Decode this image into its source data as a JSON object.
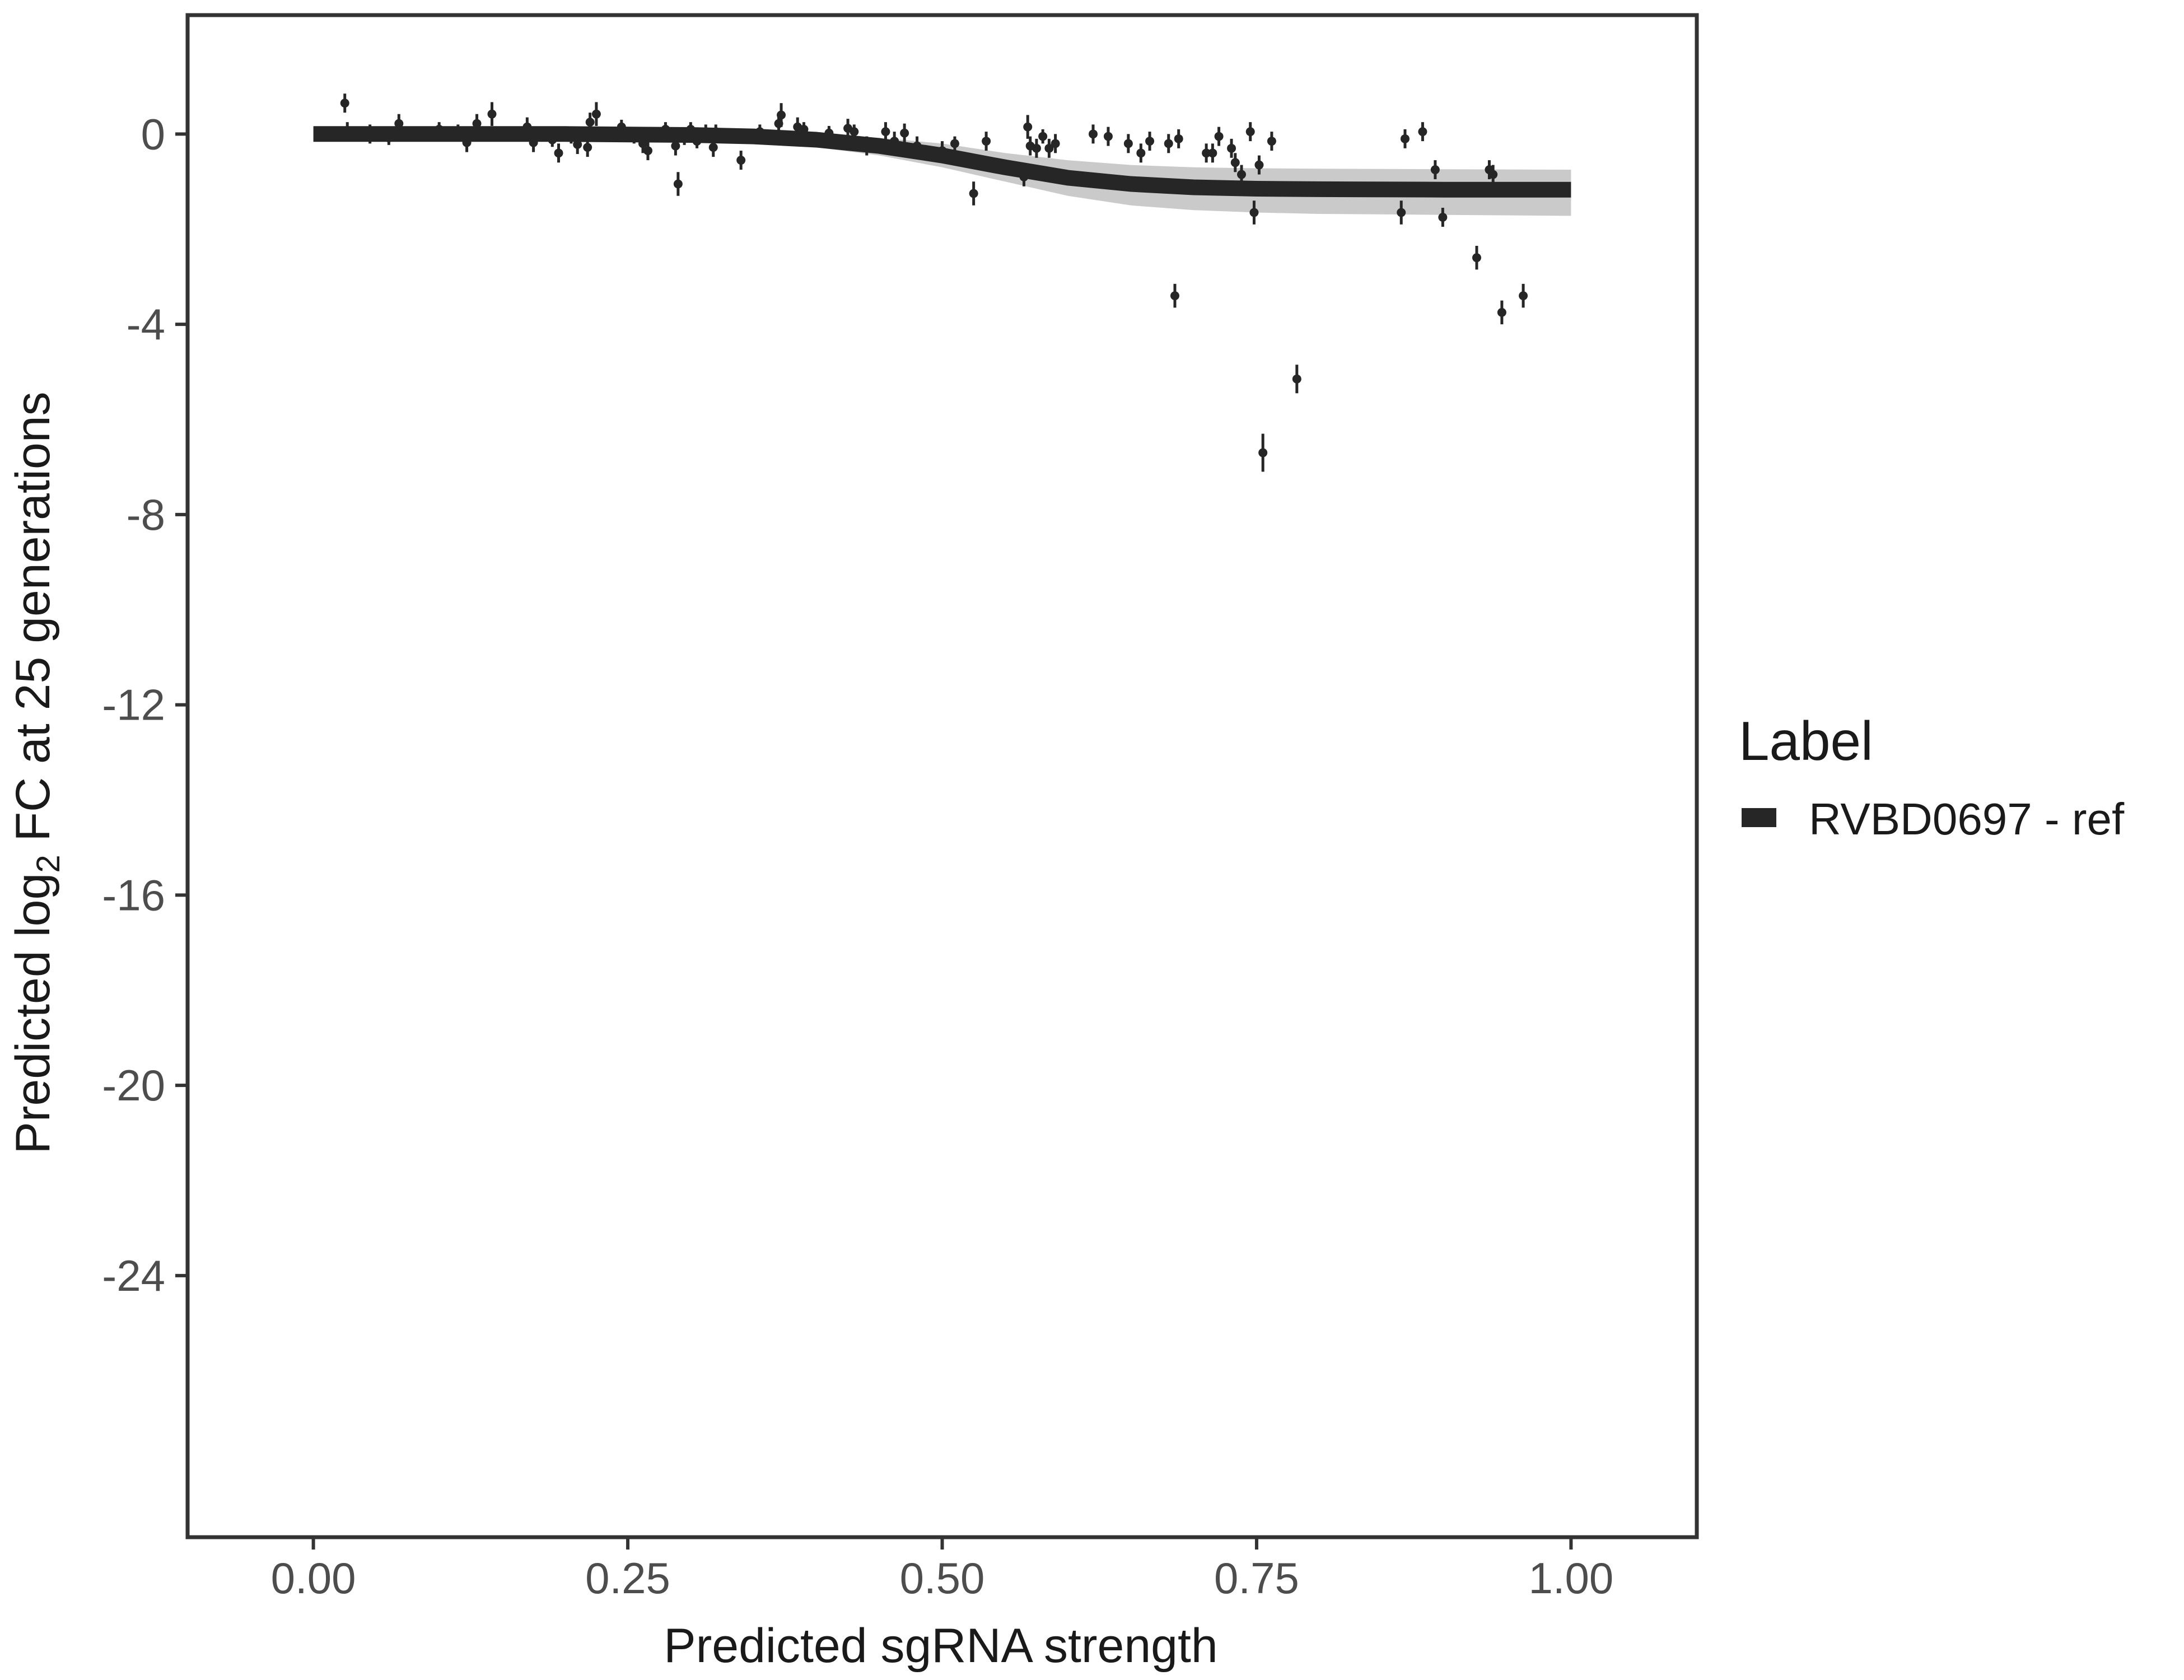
{
  "chart_data": {
    "type": "scatter",
    "xlabel": "Predicted sgRNA strength",
    "ylabel": {
      "prefix": "Predicted  log",
      "subscript": "2",
      "suffix": " FC at 25 generations"
    },
    "xlim": [
      -0.1,
      1.1
    ],
    "ylim": [
      -29.5,
      2.5
    ],
    "x_ticks": [
      {
        "value": 0.0,
        "label": "0.00"
      },
      {
        "value": 0.25,
        "label": "0.25"
      },
      {
        "value": 0.5,
        "label": "0.50"
      },
      {
        "value": 0.75,
        "label": "0.75"
      },
      {
        "value": 1.0,
        "label": "1.00"
      }
    ],
    "y_ticks": [
      {
        "value": 0,
        "label": "0"
      },
      {
        "value": -4,
        "label": "-4"
      },
      {
        "value": -8,
        "label": "-8"
      },
      {
        "value": -12,
        "label": "-12"
      },
      {
        "value": -16,
        "label": "-16"
      },
      {
        "value": -20,
        "label": "-20"
      },
      {
        "value": -24,
        "label": "-24"
      }
    ],
    "grid": false,
    "legend": {
      "title": "Label",
      "position": "right",
      "entries": [
        {
          "name": "RVBD0697 - ref",
          "color": "#262626"
        }
      ]
    },
    "series": [
      {
        "name": "RVBD0697 - ref",
        "color": "#262626",
        "fit_curve": {
          "x": [
            0.0,
            0.1,
            0.2,
            0.3,
            0.35,
            0.4,
            0.45,
            0.5,
            0.55,
            0.6,
            0.65,
            0.7,
            0.75,
            0.8,
            0.9,
            1.0
          ],
          "y": [
            0.0,
            0.0,
            0.0,
            -0.02,
            -0.05,
            -0.12,
            -0.25,
            -0.45,
            -0.7,
            -0.92,
            -1.05,
            -1.12,
            -1.15,
            -1.16,
            -1.17,
            -1.17
          ],
          "band_lower": [
            -0.08,
            -0.08,
            -0.1,
            -0.12,
            -0.18,
            -0.28,
            -0.45,
            -0.7,
            -1.0,
            -1.3,
            -1.5,
            -1.6,
            -1.65,
            -1.68,
            -1.7,
            -1.72
          ],
          "band_upper": [
            0.06,
            0.06,
            0.05,
            0.05,
            0.04,
            0.0,
            -0.08,
            -0.2,
            -0.4,
            -0.55,
            -0.65,
            -0.7,
            -0.72,
            -0.73,
            -0.74,
            -0.75
          ]
        },
        "points": [
          {
            "x": 0.025,
            "y": 0.65,
            "err": 0.2
          },
          {
            "x": 0.027,
            "y": 0.05,
            "err": 0.2
          },
          {
            "x": 0.045,
            "y": 0.0,
            "err": 0.2
          },
          {
            "x": 0.06,
            "y": -0.08,
            "err": 0.15
          },
          {
            "x": 0.068,
            "y": 0.22,
            "err": 0.2
          },
          {
            "x": 0.1,
            "y": 0.1,
            "err": 0.15
          },
          {
            "x": 0.115,
            "y": 0.05,
            "err": 0.15
          },
          {
            "x": 0.122,
            "y": -0.18,
            "err": 0.2
          },
          {
            "x": 0.13,
            "y": 0.22,
            "err": 0.2
          },
          {
            "x": 0.142,
            "y": 0.42,
            "err": 0.25
          },
          {
            "x": 0.17,
            "y": 0.15,
            "err": 0.2
          },
          {
            "x": 0.175,
            "y": -0.18,
            "err": 0.2
          },
          {
            "x": 0.19,
            "y": -0.12,
            "err": 0.15
          },
          {
            "x": 0.195,
            "y": -0.4,
            "err": 0.2
          },
          {
            "x": 0.205,
            "y": -0.05,
            "err": 0.15
          },
          {
            "x": 0.21,
            "y": -0.22,
            "err": 0.2
          },
          {
            "x": 0.218,
            "y": -0.28,
            "err": 0.2
          },
          {
            "x": 0.22,
            "y": 0.25,
            "err": 0.2
          },
          {
            "x": 0.225,
            "y": 0.42,
            "err": 0.25
          },
          {
            "x": 0.245,
            "y": 0.15,
            "err": 0.15
          },
          {
            "x": 0.255,
            "y": -0.05,
            "err": 0.15
          },
          {
            "x": 0.26,
            "y": 0.0,
            "err": 0.15
          },
          {
            "x": 0.262,
            "y": -0.2,
            "err": 0.2
          },
          {
            "x": 0.266,
            "y": -0.35,
            "err": 0.2
          },
          {
            "x": 0.28,
            "y": 0.1,
            "err": 0.15
          },
          {
            "x": 0.288,
            "y": -0.25,
            "err": 0.2
          },
          {
            "x": 0.29,
            "y": -1.05,
            "err": 0.25
          },
          {
            "x": 0.295,
            "y": -0.08,
            "err": 0.15
          },
          {
            "x": 0.3,
            "y": 0.1,
            "err": 0.15
          },
          {
            "x": 0.305,
            "y": -0.15,
            "err": 0.15
          },
          {
            "x": 0.312,
            "y": 0.05,
            "err": 0.15
          },
          {
            "x": 0.318,
            "y": -0.28,
            "err": 0.2
          },
          {
            "x": 0.32,
            "y": 0.05,
            "err": 0.15
          },
          {
            "x": 0.34,
            "y": -0.55,
            "err": 0.2
          },
          {
            "x": 0.355,
            "y": 0.05,
            "err": 0.15
          },
          {
            "x": 0.37,
            "y": 0.22,
            "err": 0.2
          },
          {
            "x": 0.372,
            "y": 0.4,
            "err": 0.25
          },
          {
            "x": 0.385,
            "y": 0.15,
            "err": 0.2
          },
          {
            "x": 0.39,
            "y": 0.1,
            "err": 0.15
          },
          {
            "x": 0.41,
            "y": 0.02,
            "err": 0.15
          },
          {
            "x": 0.425,
            "y": 0.12,
            "err": 0.2
          },
          {
            "x": 0.43,
            "y": 0.05,
            "err": 0.15
          },
          {
            "x": 0.44,
            "y": -0.25,
            "err": 0.2
          },
          {
            "x": 0.455,
            "y": 0.05,
            "err": 0.2
          },
          {
            "x": 0.462,
            "y": -0.15,
            "err": 0.2
          },
          {
            "x": 0.47,
            "y": 0.02,
            "err": 0.2
          },
          {
            "x": 0.48,
            "y": -0.25,
            "err": 0.2
          },
          {
            "x": 0.5,
            "y": -0.35,
            "err": 0.2
          },
          {
            "x": 0.51,
            "y": -0.2,
            "err": 0.15
          },
          {
            "x": 0.525,
            "y": -1.25,
            "err": 0.25
          },
          {
            "x": 0.535,
            "y": -0.15,
            "err": 0.2
          },
          {
            "x": 0.565,
            "y": -0.9,
            "err": 0.2
          },
          {
            "x": 0.568,
            "y": 0.15,
            "err": 0.25
          },
          {
            "x": 0.57,
            "y": -0.25,
            "err": 0.2
          },
          {
            "x": 0.575,
            "y": -0.3,
            "err": 0.2
          },
          {
            "x": 0.58,
            "y": -0.05,
            "err": 0.15
          },
          {
            "x": 0.585,
            "y": -0.3,
            "err": 0.2
          },
          {
            "x": 0.59,
            "y": -0.2,
            "err": 0.2
          },
          {
            "x": 0.62,
            "y": 0.0,
            "err": 0.2
          },
          {
            "x": 0.632,
            "y": -0.05,
            "err": 0.2
          },
          {
            "x": 0.648,
            "y": -0.2,
            "err": 0.2
          },
          {
            "x": 0.658,
            "y": -0.4,
            "err": 0.2
          },
          {
            "x": 0.665,
            "y": -0.15,
            "err": 0.2
          },
          {
            "x": 0.68,
            "y": -0.2,
            "err": 0.2
          },
          {
            "x": 0.685,
            "y": -3.4,
            "err": 0.25
          },
          {
            "x": 0.688,
            "y": -0.1,
            "err": 0.2
          },
          {
            "x": 0.71,
            "y": -0.4,
            "err": 0.2
          },
          {
            "x": 0.715,
            "y": -0.4,
            "err": 0.2
          },
          {
            "x": 0.72,
            "y": -0.05,
            "err": 0.2
          },
          {
            "x": 0.73,
            "y": -0.3,
            "err": 0.2
          },
          {
            "x": 0.733,
            "y": -0.6,
            "err": 0.2
          },
          {
            "x": 0.738,
            "y": -0.85,
            "err": 0.2
          },
          {
            "x": 0.745,
            "y": 0.05,
            "err": 0.2
          },
          {
            "x": 0.748,
            "y": -1.65,
            "err": 0.25
          },
          {
            "x": 0.752,
            "y": -0.65,
            "err": 0.2
          },
          {
            "x": 0.755,
            "y": -6.7,
            "err": 0.4
          },
          {
            "x": 0.762,
            "y": -0.15,
            "err": 0.2
          },
          {
            "x": 0.782,
            "y": -5.15,
            "err": 0.3
          },
          {
            "x": 0.865,
            "y": -1.65,
            "err": 0.25
          },
          {
            "x": 0.868,
            "y": -0.1,
            "err": 0.2
          },
          {
            "x": 0.882,
            "y": 0.05,
            "err": 0.2
          },
          {
            "x": 0.892,
            "y": -0.75,
            "err": 0.2
          },
          {
            "x": 0.898,
            "y": -1.75,
            "err": 0.2
          },
          {
            "x": 0.925,
            "y": -2.6,
            "err": 0.25
          },
          {
            "x": 0.935,
            "y": -0.75,
            "err": 0.2
          },
          {
            "x": 0.938,
            "y": -0.85,
            "err": 0.2
          },
          {
            "x": 0.945,
            "y": -3.75,
            "err": 0.25
          },
          {
            "x": 0.962,
            "y": -3.4,
            "err": 0.25
          }
        ]
      }
    ]
  }
}
